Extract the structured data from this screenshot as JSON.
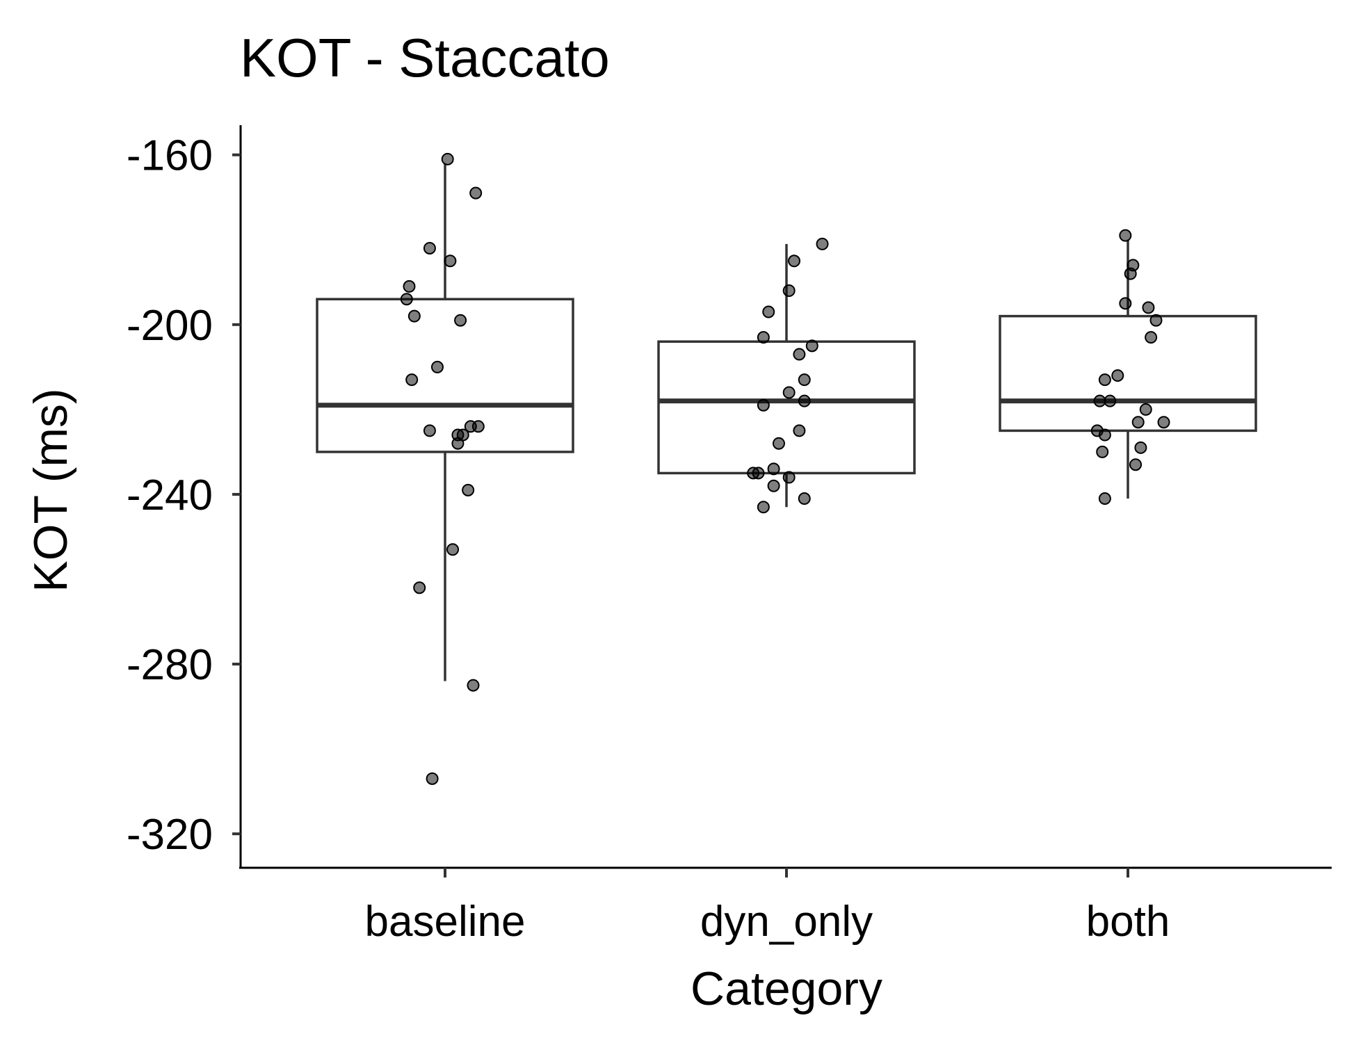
{
  "chart_data": {
    "type": "box",
    "title": "KOT - Staccato",
    "xlabel": "Category",
    "ylabel": "KOT (ms)",
    "ylim": [
      -328,
      -153
    ],
    "yticks": [
      -160,
      -200,
      -240,
      -280,
      -320
    ],
    "grid": false,
    "categories": [
      "baseline",
      "dyn_only",
      "both"
    ],
    "boxes": [
      {
        "category": "baseline",
        "lower_whisker": -284,
        "q1": -230,
        "median": -219,
        "q3": -194,
        "upper_whisker": -162
      },
      {
        "category": "dyn_only",
        "lower_whisker": -243,
        "q1": -235,
        "median": -218,
        "q3": -204,
        "upper_whisker": -181
      },
      {
        "category": "both",
        "lower_whisker": -241,
        "q1": -225,
        "median": -218,
        "q3": -198,
        "upper_whisker": -180
      }
    ],
    "points": [
      {
        "category": "baseline",
        "values": [
          -161,
          -169,
          -182,
          -185,
          -191,
          -194,
          -198,
          -199,
          -210,
          -213,
          -225,
          -224,
          -224,
          -226,
          -226,
          -228,
          -239,
          -253,
          -262,
          -285,
          -307
        ],
        "jitter": [
          0.01,
          0.12,
          -0.06,
          0.02,
          -0.14,
          -0.15,
          -0.12,
          0.06,
          -0.03,
          -0.13,
          -0.06,
          0.1,
          0.13,
          0.07,
          0.05,
          0.05,
          0.09,
          0.03,
          -0.1,
          0.11,
          -0.05
        ]
      },
      {
        "category": "dyn_only",
        "values": [
          -181,
          -185,
          -192,
          -197,
          -203,
          -205,
          -207,
          -213,
          -216,
          -218,
          -219,
          -225,
          -228,
          -234,
          -235,
          -235,
          -236,
          -238,
          -241,
          -243
        ],
        "jitter": [
          0.14,
          0.03,
          0.01,
          -0.07,
          -0.09,
          0.1,
          0.05,
          0.07,
          0.01,
          0.07,
          -0.09,
          0.05,
          -0.03,
          -0.05,
          -0.13,
          -0.11,
          0.01,
          -0.05,
          0.07,
          -0.09
        ]
      },
      {
        "category": "both",
        "values": [
          -179,
          -186,
          -188,
          -195,
          -196,
          -199,
          -203,
          -212,
          -213,
          -218,
          -218,
          -220,
          -223,
          -223,
          -225,
          -226,
          -229,
          -230,
          -233,
          -241
        ],
        "jitter": [
          -0.01,
          0.02,
          0.01,
          -0.01,
          0.08,
          0.11,
          0.09,
          -0.04,
          -0.09,
          -0.07,
          -0.11,
          0.07,
          0.04,
          0.14,
          -0.12,
          -0.09,
          0.05,
          -0.1,
          0.03,
          -0.09
        ]
      }
    ]
  }
}
